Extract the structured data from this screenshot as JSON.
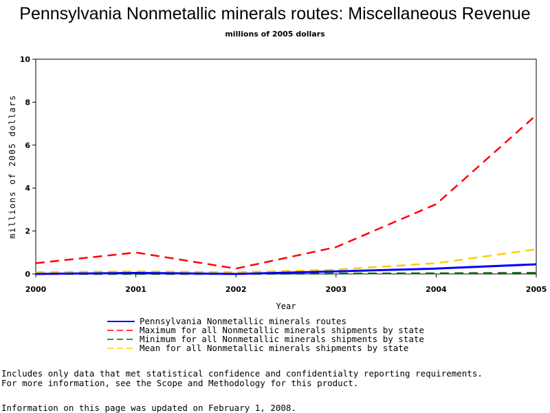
{
  "chart_data": {
    "type": "line",
    "title": "Pennsylvania Nonmetallic minerals routes: Miscellaneous Revenue",
    "subtitle": "millions of 2005 dollars",
    "xlabel": "Year",
    "ylabel": "millions of 2005 dollars",
    "x": [
      2000,
      2001,
      2002,
      2003,
      2004,
      2005
    ],
    "ylim": [
      0,
      10
    ],
    "yticks": [
      0,
      2,
      4,
      6,
      8,
      10
    ],
    "grid": false,
    "legend_position": "bottom",
    "series": [
      {
        "name": "Pennsylvania Nonmetallic minerals routes",
        "color": "#0000ff",
        "style": "solid",
        "values": [
          0.0,
          0.05,
          0.0,
          0.12,
          0.25,
          0.45
        ]
      },
      {
        "name": "Maximum for all Nonmetallic minerals shipments by state",
        "color": "#ff0000",
        "style": "dashed",
        "values": [
          0.5,
          1.0,
          0.25,
          1.25,
          3.25,
          7.4
        ]
      },
      {
        "name": "Minimum for all Nonmetallic minerals shipments by state",
        "color": "#006400",
        "style": "dashed",
        "values": [
          0.0,
          0.0,
          0.0,
          0.02,
          0.03,
          0.05
        ]
      },
      {
        "name": "Mean for all Nonmetallic minerals shipments by state",
        "color": "#ffcc00",
        "style": "dashed",
        "values": [
          0.08,
          0.12,
          0.08,
          0.2,
          0.5,
          1.15
        ]
      }
    ]
  },
  "footnotes": {
    "line1": "Includes only data that met statistical confidence and confidentialty reporting requirements.",
    "line2": "For more information, see the Scope and Methodology for this product.",
    "updated": "Information on this page was updated on February 1, 2008."
  }
}
